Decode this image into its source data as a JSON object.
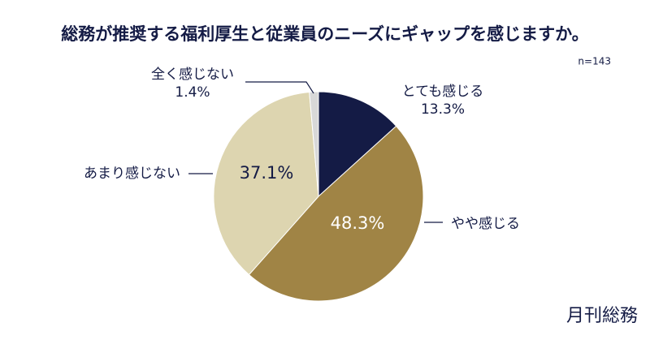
{
  "chart_data": {
    "type": "pie",
    "title": "総務が推奨する福利厚生と従業員のニーズにギャップを感じますか。",
    "subtitle": "n=143",
    "brand": "月刊総務",
    "categories": [
      "とても感じる",
      "やや感じる",
      "あまり感じない",
      "全く感じない"
    ],
    "values": [
      13.3,
      48.3,
      37.1,
      1.4
    ],
    "value_labels": [
      "13.3%",
      "48.3%",
      "37.1%",
      "1.4%"
    ],
    "colors": [
      "#141b45",
      "#a08445",
      "#ddd5b0",
      "#d8d8d8"
    ]
  }
}
